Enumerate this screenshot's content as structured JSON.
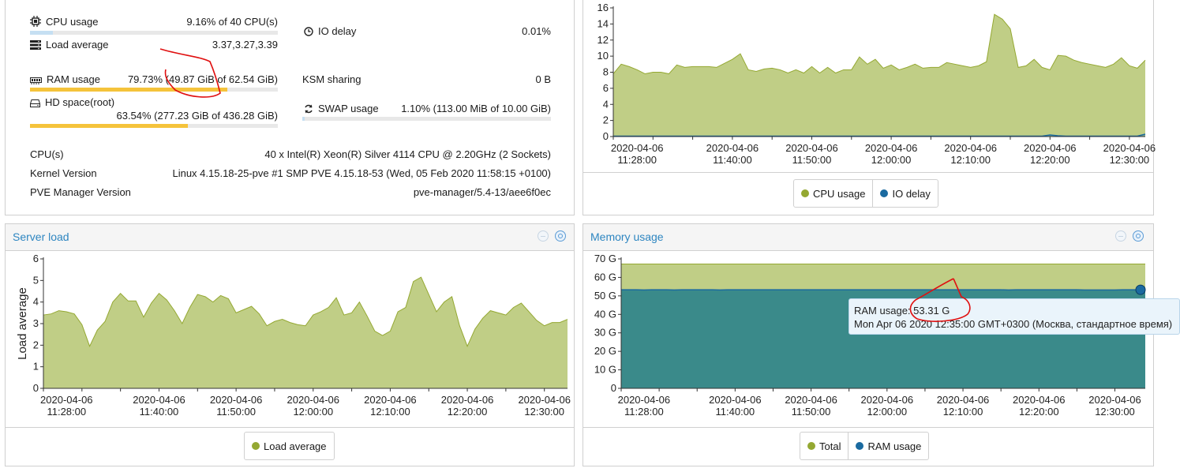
{
  "summary": {
    "cpu_usage": {
      "label": "CPU usage",
      "value": "9.16% of 40 CPU(s)",
      "fraction": 0.0916
    },
    "io_delay": {
      "label": "IO delay",
      "value": "0.01%"
    },
    "load_average": {
      "label": "Load average",
      "value": "3.37,3.27,3.39"
    },
    "ram_usage": {
      "label": "RAM usage",
      "value": "79.73% (49.87 GiB of 62.54 GiB)",
      "fraction": 0.7973
    },
    "ksm_sharing": {
      "label": "KSM sharing",
      "value": "0 B"
    },
    "hd_space": {
      "label": "HD space(root)",
      "value": "63.54% (277.23 GiB of 436.28 GiB)",
      "fraction": 0.6354
    },
    "swap_usage": {
      "label": "SWAP usage",
      "value": "1.10% (113.00 MiB of 10.00 GiB)",
      "fraction": 0.011
    },
    "cpus": {
      "label": "CPU(s)",
      "value": "40 x Intel(R) Xeon(R) Silver 4114 CPU @ 2.20GHz (2 Sockets)"
    },
    "kernel": {
      "label": "Kernel Version",
      "value": "Linux 4.15.18-25-pve #1 SMP PVE 4.15.18-53 (Wed, 05 Feb 2020 11:58:15 +0100)"
    },
    "pve_manager": {
      "label": "PVE Manager Version",
      "value": "pve-manager/5.4-13/aee6f0ec"
    }
  },
  "colors": {
    "green_fill": "#c0ce86",
    "green_line": "#94a832",
    "blue_fill": "#3a8a8a",
    "blue_line": "#1a6aa0",
    "bar_yellow": "#f5c33b",
    "bar_blue": "#c5dff2",
    "annotation_red": "#e01010"
  },
  "panels": {
    "server_load": {
      "title": "Server load"
    },
    "memory_usage": {
      "title": "Memory usage"
    }
  },
  "tooltip": {
    "line1": "RAM usage: 53.31 G",
    "line2": "Mon Apr 06 2020 12:35:00 GMT+0300 (Москва, стандартное время)"
  },
  "chart_data": [
    {
      "id": "cpu",
      "type": "area",
      "x_start": "2020-04-06 11:25:00",
      "x_step": "1 min",
      "x_ticks": [
        [
          "2020-04-06",
          "11:28:00"
        ],
        [
          "2020-04-06",
          "11:40:00"
        ],
        [
          "2020-04-06",
          "11:50:00"
        ],
        [
          "2020-04-06",
          "12:00:00"
        ],
        [
          "2020-04-06",
          "12:10:00"
        ],
        [
          "2020-04-06",
          "12:20:00"
        ],
        [
          "2020-04-06",
          "12:30:00"
        ]
      ],
      "ylim": [
        0,
        16
      ],
      "y_ticks": [
        "0",
        "2",
        "4",
        "6",
        "8",
        "10",
        "12",
        "14",
        "16"
      ],
      "series": [
        {
          "name": "CPU usage",
          "color": "#94a832",
          "values": [
            7.8,
            9.0,
            8.7,
            8.3,
            7.8,
            8.0,
            8.0,
            7.8,
            8.9,
            8.6,
            8.7,
            8.7,
            8.7,
            8.6,
            9.1,
            9.6,
            10.3,
            8.3,
            8.1,
            8.4,
            8.5,
            8.3,
            7.9,
            8.3,
            7.9,
            8.7,
            7.9,
            8.6,
            7.9,
            8.3,
            8.3,
            9.9,
            9.0,
            9.6,
            8.5,
            8.9,
            8.3,
            8.6,
            9.0,
            8.5,
            8.6,
            8.6,
            9.2,
            9.0,
            8.8,
            8.6,
            8.8,
            9.3,
            15.2,
            14.6,
            13.4,
            8.6,
            8.8,
            9.6,
            8.6,
            8.3,
            10.1,
            10.0,
            9.5,
            9.2,
            9.0,
            8.8,
            8.6,
            9.0,
            9.8,
            8.8,
            8.5,
            9.5
          ]
        },
        {
          "name": "IO delay",
          "color": "#1a6aa0",
          "values": [
            0.05,
            0.05,
            0.05,
            0.05,
            0.05,
            0.05,
            0.05,
            0.05,
            0.05,
            0.05,
            0.05,
            0.05,
            0.05,
            0.05,
            0.05,
            0.05,
            0.05,
            0.05,
            0.05,
            0.05,
            0.05,
            0.05,
            0.05,
            0.05,
            0.05,
            0.05,
            0.05,
            0.05,
            0.05,
            0.05,
            0.05,
            0.05,
            0.05,
            0.05,
            0.05,
            0.05,
            0.05,
            0.05,
            0.05,
            0.05,
            0.05,
            0.05,
            0.05,
            0.05,
            0.05,
            0.05,
            0.05,
            0.05,
            0.05,
            0.05,
            0.05,
            0.05,
            0.05,
            0.05,
            0.05,
            0.2,
            0.1,
            0.05,
            0.05,
            0.05,
            0.05,
            0.05,
            0.05,
            0.05,
            0.05,
            0.05,
            0.05,
            0.3
          ]
        }
      ],
      "legend": [
        {
          "label": "CPU usage",
          "color": "#94a832"
        },
        {
          "label": "IO delay",
          "color": "#1a6aa0"
        }
      ]
    },
    {
      "id": "load",
      "type": "area",
      "ylabel": "Load average",
      "x_start": "2020-04-06 11:25:00",
      "x_step": "1 min",
      "x_ticks": [
        [
          "2020-04-06",
          "11:28:00"
        ],
        [
          "2020-04-06",
          "11:40:00"
        ],
        [
          "2020-04-06",
          "11:50:00"
        ],
        [
          "2020-04-06",
          "12:00:00"
        ],
        [
          "2020-04-06",
          "12:10:00"
        ],
        [
          "2020-04-06",
          "12:20:00"
        ],
        [
          "2020-04-06",
          "12:30:00"
        ]
      ],
      "ylim": [
        0,
        6
      ],
      "y_ticks": [
        "0",
        "1",
        "2",
        "3",
        "4",
        "5",
        "6"
      ],
      "series": [
        {
          "name": "Load average",
          "color": "#94a832",
          "values": [
            3.4,
            3.45,
            3.6,
            3.55,
            3.45,
            2.95,
            1.95,
            2.7,
            3.1,
            4.0,
            4.4,
            4.05,
            4.05,
            3.3,
            3.95,
            4.4,
            4.1,
            3.6,
            3.0,
            3.75,
            4.35,
            4.25,
            4.0,
            4.3,
            4.15,
            3.5,
            3.65,
            3.8,
            3.45,
            2.9,
            3.1,
            3.2,
            3.05,
            2.95,
            2.9,
            3.4,
            3.55,
            3.75,
            4.2,
            3.4,
            3.5,
            4.0,
            3.35,
            2.65,
            2.45,
            2.65,
            3.55,
            3.75,
            4.95,
            5.15,
            4.35,
            3.55,
            4.0,
            4.25,
            2.9,
            1.95,
            2.75,
            3.25,
            3.6,
            3.5,
            3.4,
            3.75,
            3.95,
            3.55,
            3.15,
            2.9,
            3.05,
            3.05,
            3.2
          ]
        }
      ],
      "legend": [
        {
          "label": "Load average",
          "color": "#94a832"
        }
      ]
    },
    {
      "id": "mem",
      "type": "area",
      "x_start": "2020-04-06 11:25:00",
      "x_step": "1 min",
      "x_ticks": [
        [
          "2020-04-06",
          "11:28:00"
        ],
        [
          "2020-04-06",
          "11:40:00"
        ],
        [
          "2020-04-06",
          "11:50:00"
        ],
        [
          "2020-04-06",
          "12:00:00"
        ],
        [
          "2020-04-06",
          "12:10:00"
        ],
        [
          "2020-04-06",
          "12:20:00"
        ],
        [
          "2020-04-06",
          "12:30:00"
        ]
      ],
      "ylim": [
        0,
        70
      ],
      "y_ticks": [
        "0",
        "10 G",
        "20 G",
        "30 G",
        "40 G",
        "50 G",
        "60 G",
        "70 G"
      ],
      "series": [
        {
          "name": "Total",
          "color": "#94a832",
          "values": [
            67.2,
            67.2,
            67.2,
            67.2,
            67.2,
            67.2,
            67.2,
            67.2,
            67.2,
            67.2,
            67.2,
            67.2,
            67.2,
            67.2,
            67.2,
            67.2,
            67.2,
            67.2,
            67.2,
            67.2,
            67.2,
            67.2,
            67.2,
            67.2,
            67.2,
            67.2,
            67.2,
            67.2,
            67.2,
            67.2,
            67.2,
            67.2,
            67.2,
            67.2,
            67.2,
            67.2,
            67.2,
            67.2,
            67.2,
            67.2,
            67.2,
            67.2,
            67.2,
            67.2,
            67.2,
            67.2,
            67.2,
            67.2,
            67.2,
            67.2,
            67.2,
            67.2,
            67.2,
            67.2,
            67.2,
            67.2,
            67.2,
            67.2,
            67.2,
            67.2,
            67.2,
            67.2,
            67.2,
            67.2,
            67.2,
            67.2,
            67.2,
            67.2,
            67.2,
            67.2
          ]
        },
        {
          "name": "RAM usage",
          "color": "#1a6aa0",
          "values": [
            53.3,
            53.3,
            53.3,
            53.2,
            53.3,
            53.3,
            53.3,
            53.2,
            53.3,
            53.3,
            53.3,
            53.3,
            53.3,
            53.2,
            53.3,
            53.3,
            53.3,
            53.3,
            53.3,
            53.3,
            53.3,
            53.3,
            53.3,
            53.3,
            53.3,
            53.3,
            53.3,
            53.3,
            53.3,
            53.3,
            53.3,
            53.3,
            53.3,
            53.3,
            53.3,
            53.3,
            53.3,
            53.3,
            53.3,
            53.3,
            53.3,
            53.3,
            53.3,
            53.3,
            53.3,
            53.3,
            53.3,
            53.3,
            53.3,
            53.3,
            53.3,
            53.2,
            53.3,
            53.3,
            53.3,
            53.3,
            53.3,
            53.3,
            53.3,
            53.3,
            53.3,
            53.2,
            53.2,
            53.2,
            53.2,
            53.2,
            53.3,
            53.31,
            53.31,
            53.31
          ]
        }
      ],
      "legend": [
        {
          "label": "Total",
          "color": "#94a832"
        },
        {
          "label": "RAM usage",
          "color": "#1a6aa0"
        }
      ]
    }
  ]
}
